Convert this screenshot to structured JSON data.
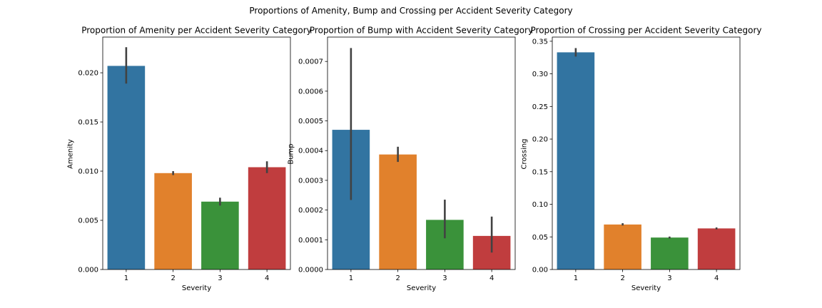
{
  "figure": {
    "suptitle": "Proportions of Amenity, Bump and Crossing per Accident Severity Category"
  },
  "colors": [
    "#3274a1",
    "#e1812c",
    "#3a923a",
    "#c03d3e"
  ],
  "errorbar_color": "#424242",
  "chart_data": [
    {
      "type": "bar",
      "title": "Proportion of Amenity per Accident Severity Category",
      "xlabel": "Severity",
      "ylabel": "Amenity",
      "categories": [
        "1",
        "2",
        "3",
        "4"
      ],
      "values": [
        0.0207,
        0.0098,
        0.0069,
        0.0104
      ],
      "errors": [
        [
          0.0189,
          0.0226
        ],
        [
          0.0096,
          0.01
        ],
        [
          0.0065,
          0.0073
        ],
        [
          0.0098,
          0.011
        ]
      ],
      "ylim": [
        0,
        0.02363
      ],
      "yticks": [
        0,
        0.005,
        0.01,
        0.015,
        0.02
      ],
      "ytick_labels": [
        "0.000",
        "0.005",
        "0.010",
        "0.015",
        "0.020"
      ],
      "grid": false,
      "legend": "none"
    },
    {
      "type": "bar",
      "title": "Proportion of Bump with Accident Severity Category",
      "xlabel": "Severity",
      "ylabel": "Bump",
      "categories": [
        "1",
        "2",
        "3",
        "4"
      ],
      "values": [
        0.00047,
        0.000387,
        0.000167,
        0.000113
      ],
      "errors": [
        [
          0.000234,
          0.000745
        ],
        [
          0.000362,
          0.000413
        ],
        [
          0.000105,
          0.000235
        ],
        [
          5.7e-05,
          0.000178
        ]
      ],
      "ylim": [
        0,
        0.000782
      ],
      "yticks": [
        0,
        0.0001,
        0.0002,
        0.0003,
        0.0004,
        0.0005,
        0.0006,
        0.0007
      ],
      "ytick_labels": [
        "0.0000",
        "0.0001",
        "0.0002",
        "0.0003",
        "0.0004",
        "0.0005",
        "0.0006",
        "0.0007"
      ],
      "grid": false,
      "legend": "none"
    },
    {
      "type": "bar",
      "title": "Proportion of Crossing per Accident Severity Category",
      "xlabel": "Severity",
      "ylabel": "Crossing",
      "categories": [
        "1",
        "2",
        "3",
        "4"
      ],
      "values": [
        0.333,
        0.069,
        0.049,
        0.063
      ],
      "errors": [
        [
          0.3265,
          0.3395
        ],
        [
          0.0675,
          0.071
        ],
        [
          0.0475,
          0.0505
        ],
        [
          0.0615,
          0.0645
        ]
      ],
      "ylim": [
        0,
        0.3564
      ],
      "yticks": [
        0,
        0.05,
        0.1,
        0.15,
        0.2,
        0.25,
        0.3,
        0.35
      ],
      "ytick_labels": [
        "0.00",
        "0.05",
        "0.10",
        "0.15",
        "0.20",
        "0.25",
        "0.30",
        "0.35"
      ],
      "grid": false,
      "legend": "none"
    }
  ]
}
